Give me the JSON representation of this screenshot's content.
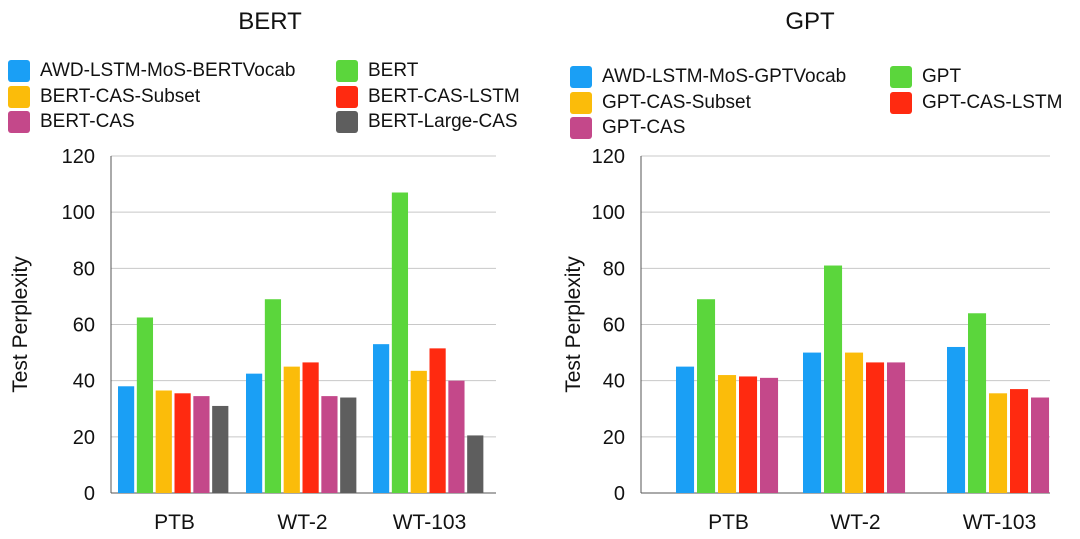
{
  "chart_data": [
    {
      "type": "bar",
      "title": "BERT",
      "xlabel": "",
      "ylabel": "Test Perplexity",
      "ylim": [
        0,
        120
      ],
      "yticks": [
        0,
        20,
        40,
        60,
        80,
        100,
        120
      ],
      "grid": true,
      "legend_position": "top",
      "categories": [
        "PTB",
        "WT-2",
        "WT-103"
      ],
      "series": [
        {
          "name": "AWD-LSTM-MoS-BERTVocab",
          "color": "#1a9ff5",
          "values": [
            38,
            42.5,
            53
          ]
        },
        {
          "name": "BERT",
          "color": "#5bd63c",
          "values": [
            62.5,
            69,
            107
          ]
        },
        {
          "name": "BERT-CAS-Subset",
          "color": "#fbbc0a",
          "values": [
            36.5,
            45,
            43.5
          ]
        },
        {
          "name": "BERT-CAS-LSTM",
          "color": "#ff2a10",
          "values": [
            35.5,
            46.5,
            51.5
          ]
        },
        {
          "name": "BERT-CAS",
          "color": "#c4488a",
          "values": [
            34.5,
            34.5,
            40
          ]
        },
        {
          "name": "BERT-Large-CAS",
          "color": "#5e5e5e",
          "values": [
            31,
            34,
            20.5
          ]
        }
      ]
    },
    {
      "type": "bar",
      "title": "GPT",
      "xlabel": "",
      "ylabel": "Test Perplexity",
      "ylim": [
        0,
        120
      ],
      "yticks": [
        0,
        20,
        40,
        60,
        80,
        100,
        120
      ],
      "grid": true,
      "legend_position": "top",
      "categories": [
        "PTB",
        "WT-2",
        "WT-103"
      ],
      "series": [
        {
          "name": "AWD-LSTM-MoS-GPTVocab",
          "color": "#1a9ff5",
          "values": [
            45,
            50,
            52
          ]
        },
        {
          "name": "GPT",
          "color": "#5bd63c",
          "values": [
            69,
            81,
            64
          ]
        },
        {
          "name": "GPT-CAS-Subset",
          "color": "#fbbc0a",
          "values": [
            42,
            50,
            35.5
          ]
        },
        {
          "name": "GPT-CAS-LSTM",
          "color": "#ff2a10",
          "values": [
            41.5,
            46.5,
            37
          ]
        },
        {
          "name": "GPT-CAS",
          "color": "#c4488a",
          "values": [
            41,
            46.5,
            34
          ]
        }
      ]
    }
  ]
}
